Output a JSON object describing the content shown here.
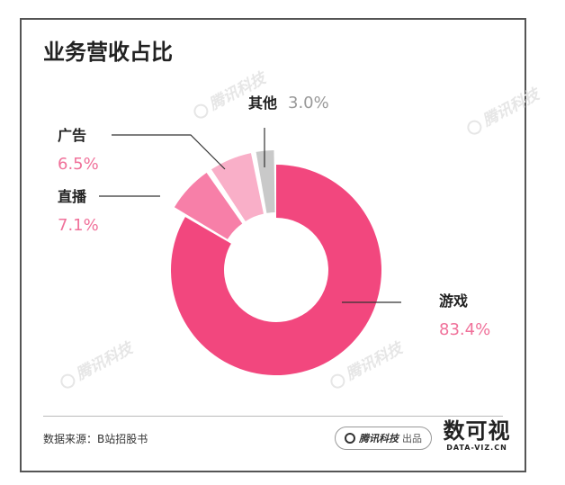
{
  "header": {
    "title": "业务营收占比"
  },
  "watermark": {
    "text": "腾讯科技"
  },
  "chart_data": {
    "type": "pie",
    "donut": true,
    "categories": [
      "游戏",
      "直播",
      "广告",
      "其他"
    ],
    "values": [
      83.4,
      7.1,
      6.5,
      3.0
    ],
    "value_labels": [
      "83.4%",
      "7.1%",
      "6.5%",
      "3.0%"
    ],
    "colors": [
      "#f2477e",
      "#f77fa8",
      "#f9afc8",
      "#c9c9c9"
    ],
    "label_color": "#f0719a",
    "title": "业务营收占比"
  },
  "footer": {
    "source": "数据来源：B站招股书",
    "badge_brand": "腾讯科技",
    "badge_suffix": "出品",
    "logo_main": "数可视",
    "logo_sub": "DATA-VIZ.CN"
  }
}
